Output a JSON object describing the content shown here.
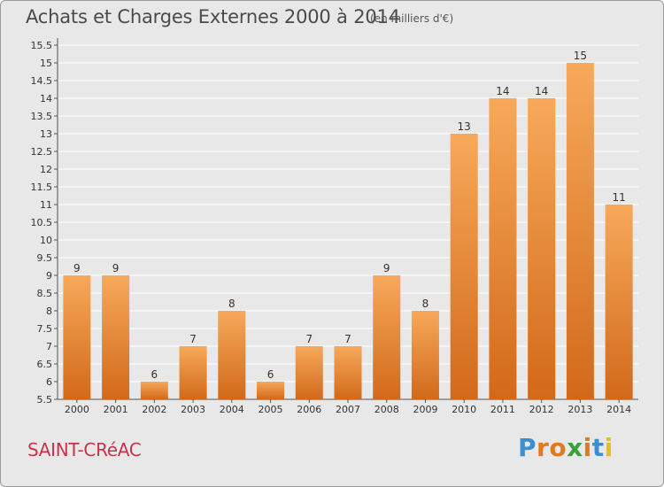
{
  "title": "Achats et Charges Externes 2000 à 2014",
  "subtitle": "(en milliers d'€)",
  "commune": "SAINT-CRéAC",
  "brand": {
    "letters": [
      "P",
      "r",
      "o",
      "x",
      "i",
      "t",
      "i"
    ],
    "colors": [
      "#3a8fd1",
      "#e07a1f",
      "#e07a1f",
      "#3aa03a",
      "#e07a1f",
      "#3a8fd1",
      "#e0c21f"
    ]
  },
  "colors": {
    "bar_light": "#f7a95a",
    "bar_dark": "#d2691a",
    "background": "#e8e8e8",
    "grid": "#ffffff"
  },
  "chart_data": {
    "type": "bar",
    "title": "Achats et Charges Externes 2000 à 2014",
    "subtitle": "(en milliers d'€)",
    "categories": [
      "2000",
      "2001",
      "2002",
      "2003",
      "2004",
      "2005",
      "2006",
      "2007",
      "2008",
      "2009",
      "2010",
      "2011",
      "2012",
      "2013",
      "2014"
    ],
    "values": [
      9,
      9,
      6,
      7,
      8,
      6,
      7,
      7,
      9,
      8,
      13,
      14,
      14,
      15,
      11
    ],
    "y_ticks": [
      "5.5",
      "6",
      "6.5",
      "7",
      "7.5",
      "8",
      "8.5",
      "9",
      "9.5",
      "10",
      "10.5",
      "11",
      "11.5",
      "12",
      "12.5",
      "13",
      "13.5",
      "14",
      "14.5",
      "15",
      "15.5"
    ],
    "ylim": [
      5.5,
      15.5
    ],
    "grid": true,
    "xlabel": "",
    "ylabel": ""
  }
}
